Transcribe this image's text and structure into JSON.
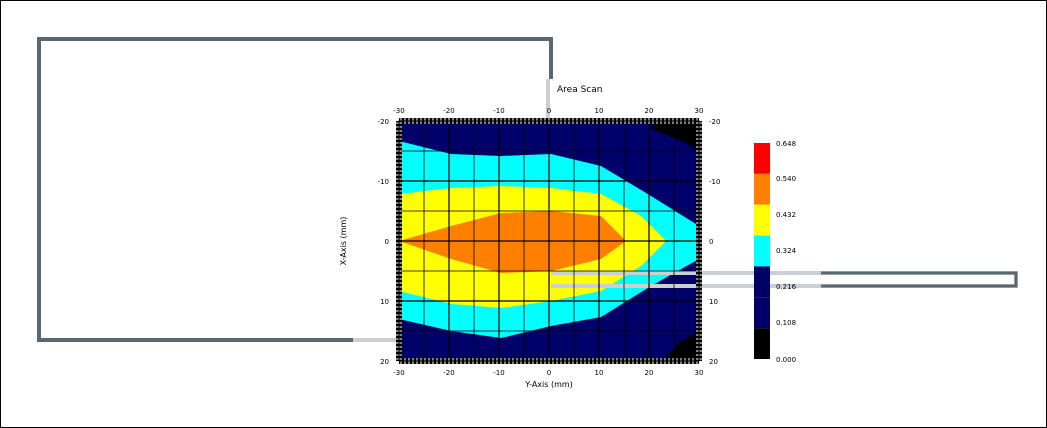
{
  "chart_data": {
    "type": "heatmap",
    "title": "Area Scan",
    "xlabel": "Y-Axis (mm)",
    "ylabel": "X-Axis (mm)",
    "xlim": [
      -30,
      30
    ],
    "ylim": [
      -20,
      20
    ],
    "x_ticks": [
      "-30",
      "-20",
      "-10",
      "0",
      "10",
      "20",
      "30"
    ],
    "y_ticks": [
      "-20",
      "-10",
      "0",
      "10",
      "20"
    ],
    "grid": true,
    "colorbar": {
      "labels": [
        "0.648",
        "0.540",
        "0.432",
        "0.324",
        "0.216",
        "0.108",
        "0.000"
      ],
      "colors": [
        "#ff0000",
        "#ff7f00",
        "#ffff00",
        "#00ffff",
        "#000066",
        "#000066",
        "#000000"
      ]
    },
    "contour_levels": [
      {
        "level": "0.108",
        "color": "#00006b"
      },
      {
        "level": "0.216",
        "color": "#00ffff"
      },
      {
        "level": "0.324",
        "color": "#ffff00"
      },
      {
        "level": "0.432",
        "color": "#ff8000"
      }
    ],
    "corner_color": "#000000"
  },
  "colors": {
    "outline": "#5a6670",
    "outline_light": "#c8d0d4",
    "grid": "#000000",
    "background": "#ffffff"
  }
}
